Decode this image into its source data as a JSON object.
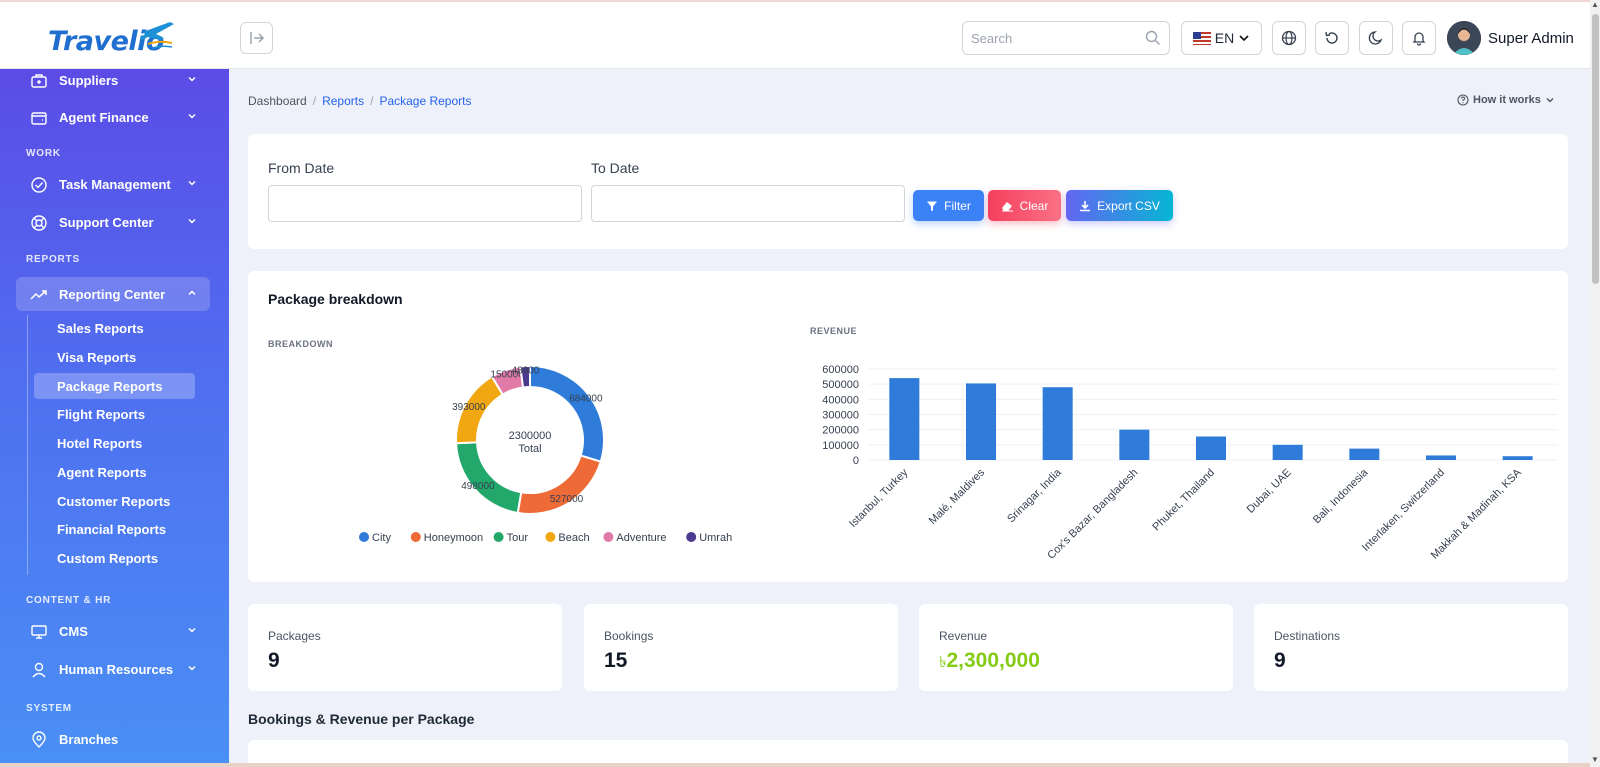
{
  "app": {
    "brand": "Travelio"
  },
  "header": {
    "search_placeholder": "Search",
    "language": "EN",
    "user_name": "Super Admin"
  },
  "sidebar": {
    "items": {
      "suppliers": "Suppliers",
      "agent_finance": "Agent Finance",
      "task_management": "Task Management",
      "support_center": "Support Center",
      "reporting_center": "Reporting Center",
      "cms": "CMS",
      "human_resources": "Human Resources",
      "branches": "Branches"
    },
    "sections": {
      "work": "WORK",
      "reports": "REPORTS",
      "content_hr": "CONTENT & HR",
      "system": "SYSTEM"
    },
    "sub_items": [
      "Sales Reports",
      "Visa Reports",
      "Package Reports",
      "Flight Reports",
      "Hotel Reports",
      "Agent Reports",
      "Customer Reports",
      "Financial Reports",
      "Custom Reports"
    ]
  },
  "breadcrumb": {
    "home": "Dashboard",
    "parent": "Reports",
    "current": "Package Reports"
  },
  "help": {
    "label": "How it works"
  },
  "filters": {
    "from_label": "From Date",
    "to_label": "To Date",
    "filter_btn": "Filter",
    "clear_btn": "Clear",
    "export_btn": "Export CSV"
  },
  "chart_section": {
    "title": "Package breakdown",
    "breakdown_label": "BREAKDOWN",
    "revenue_label": "REVENUE"
  },
  "chart_data": [
    {
      "type": "pie",
      "variant": "donut",
      "center_value": "2300000",
      "center_label": "Total",
      "categories": [
        "City",
        "Honeymoon",
        "Tour",
        "Beach",
        "Adventure",
        "Umrah"
      ],
      "values": [
        684000,
        527000,
        498000,
        393000,
        150000,
        48000
      ],
      "colors": [
        "#2f7bd9",
        "#ee6a36",
        "#22a86b",
        "#f0a712",
        "#e27aa7",
        "#4b3a8f"
      ],
      "legend": "bottom"
    },
    {
      "type": "bar",
      "categories": [
        "Istanbul, Turkey",
        "Malé, Maldives",
        "Srinagar, India",
        "Cox's Bazar, Bangladesh",
        "Phuket, Thailand",
        "Dubai, UAE",
        "Bali, Indonesia",
        "Interlaken, Switzerland",
        "Makkah & Madinah, KSA"
      ],
      "values": [
        540000,
        505000,
        480000,
        200000,
        155000,
        100000,
        75000,
        30000,
        25000
      ],
      "yticks": [
        "600000",
        "500000",
        "400000",
        "300000",
        "200000",
        "100000",
        "0"
      ],
      "ylim": [
        0,
        600000
      ],
      "color": "#2f7bd9",
      "grid": true
    }
  ],
  "stats": [
    {
      "label": "Packages",
      "value": "9"
    },
    {
      "label": "Bookings",
      "value": "15"
    },
    {
      "label": "Revenue",
      "currency": "৳",
      "value": "2,300,000"
    },
    {
      "label": "Destinations",
      "value": "9"
    }
  ],
  "table": {
    "title": "Bookings & Revenue per Package"
  }
}
